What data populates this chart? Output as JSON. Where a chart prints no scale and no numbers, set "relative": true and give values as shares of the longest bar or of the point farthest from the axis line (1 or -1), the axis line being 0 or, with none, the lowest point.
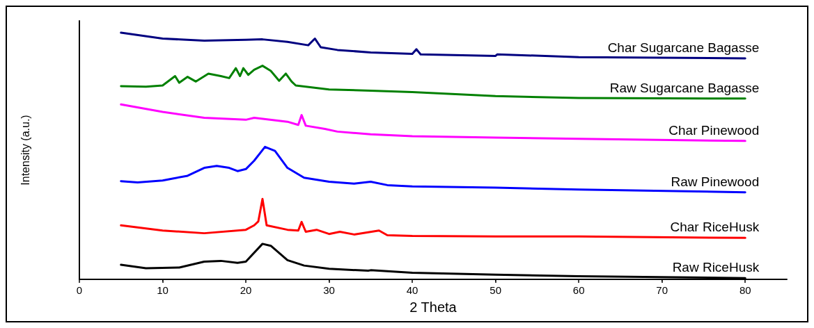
{
  "chart_data": {
    "type": "line",
    "relative": true,
    "xlabel": "2 Theta",
    "ylabel": "Intensity (a.u.)",
    "xlim": [
      0,
      85
    ],
    "xticks": [
      0,
      10,
      20,
      30,
      40,
      50,
      60,
      70,
      80
    ],
    "grid": false,
    "legend": false,
    "marker": "none",
    "line_style": "solid",
    "series": [
      {
        "name": "Char Sugarcane Bagasse",
        "color": "#000080",
        "x": [
          5,
          10,
          15,
          20,
          22,
          25,
          27.5,
          28.3,
          29,
          31,
          35,
          40,
          40.5,
          41,
          50,
          50.2,
          60,
          80
        ],
        "values": [
          1.0,
          0.976,
          0.968,
          0.971,
          0.973,
          0.963,
          0.949,
          0.976,
          0.941,
          0.93,
          0.92,
          0.914,
          0.933,
          0.912,
          0.906,
          0.912,
          0.901,
          0.896
        ]
      },
      {
        "name": "Raw Sugarcane Bagasse",
        "color": "#008000",
        "x": [
          5,
          8,
          10,
          11.5,
          12,
          13,
          14,
          15.5,
          17,
          18,
          18.8,
          19.3,
          19.7,
          20.3,
          21,
          22,
          23,
          24,
          24.8,
          25.5,
          26,
          30,
          35,
          40,
          50,
          60,
          80
        ],
        "values": [
          0.783,
          0.781,
          0.786,
          0.824,
          0.797,
          0.821,
          0.802,
          0.834,
          0.824,
          0.816,
          0.856,
          0.824,
          0.856,
          0.829,
          0.85,
          0.866,
          0.845,
          0.805,
          0.834,
          0.802,
          0.786,
          0.77,
          0.765,
          0.759,
          0.743,
          0.735,
          0.733
        ]
      },
      {
        "name": "Char Pinewood",
        "color": "#ff00ff",
        "x": [
          5,
          10,
          15,
          20,
          21,
          25,
          26.3,
          26.7,
          27.2,
          29.5,
          31,
          35,
          40,
          50,
          60,
          80
        ],
        "values": [
          0.709,
          0.679,
          0.655,
          0.647,
          0.655,
          0.639,
          0.626,
          0.666,
          0.623,
          0.61,
          0.599,
          0.588,
          0.58,
          0.575,
          0.57,
          0.561
        ]
      },
      {
        "name": "Raw Pinewood",
        "color": "#0000ff",
        "x": [
          5,
          7,
          10,
          13,
          15,
          16.5,
          18,
          19,
          20,
          21,
          22.3,
          23.5,
          25,
          27,
          30,
          33,
          35,
          37,
          40,
          50,
          60,
          80
        ],
        "values": [
          0.398,
          0.393,
          0.401,
          0.42,
          0.452,
          0.46,
          0.452,
          0.439,
          0.447,
          0.481,
          0.537,
          0.521,
          0.452,
          0.412,
          0.396,
          0.388,
          0.396,
          0.382,
          0.377,
          0.372,
          0.364,
          0.353
        ]
      },
      {
        "name": "Char RiceHusk",
        "color": "#ff0000",
        "x": [
          5,
          10,
          15,
          20,
          21,
          21.5,
          22,
          22.5,
          25,
          26.3,
          26.7,
          27.2,
          28.5,
          30,
          31.3,
          33,
          36,
          37,
          40,
          50,
          60,
          80
        ],
        "values": [
          0.219,
          0.198,
          0.187,
          0.201,
          0.219,
          0.235,
          0.326,
          0.219,
          0.201,
          0.198,
          0.233,
          0.193,
          0.201,
          0.184,
          0.193,
          0.182,
          0.198,
          0.179,
          0.176,
          0.174,
          0.174,
          0.168
        ]
      },
      {
        "name": "Raw RiceHusk",
        "color": "#000000",
        "x": [
          5,
          8,
          12,
          15,
          17,
          19,
          20,
          22,
          23,
          25,
          27,
          30,
          34.7,
          35,
          40,
          50,
          60,
          80
        ],
        "values": [
          0.059,
          0.045,
          0.048,
          0.072,
          0.075,
          0.067,
          0.072,
          0.144,
          0.136,
          0.078,
          0.056,
          0.043,
          0.035,
          0.037,
          0.027,
          0.019,
          0.013,
          0.005
        ]
      }
    ]
  }
}
